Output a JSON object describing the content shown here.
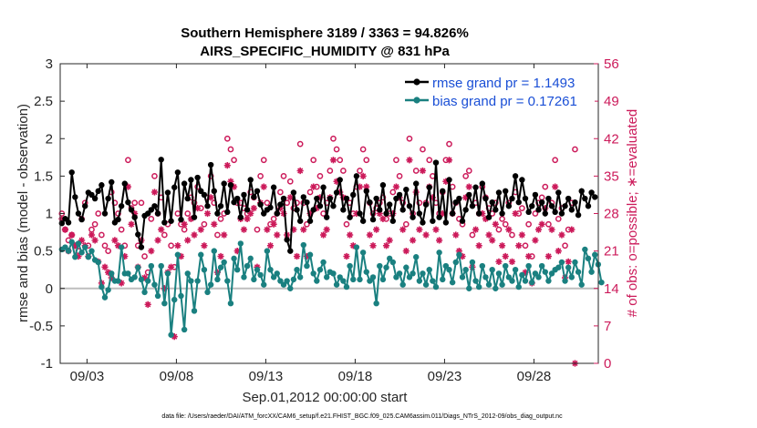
{
  "chart_data": {
    "type": "line",
    "title": "Southern Hemisphere 3189 / 3363 = 94.826%",
    "subtitle": "AIRS_SPECIFIC_HUMIDITY @ 831 hPa",
    "xlabel": "Sep.01,2012 00:00:00 start",
    "ylabel": "rmse and bias (model - observation)",
    "ylabel_right": "# of obs: o=possible; ∗=evaluated",
    "xlim": [
      1.5,
      31.6
    ],
    "ylim": [
      -1,
      3
    ],
    "ylim_right": [
      0,
      56
    ],
    "xticks": [
      3,
      8,
      13,
      18,
      23,
      28
    ],
    "xtick_labels": [
      "09/03",
      "09/08",
      "09/13",
      "09/18",
      "09/23",
      "09/28"
    ],
    "yticks": [
      -1,
      -0.5,
      0,
      0.5,
      1,
      1.5,
      2,
      2.5,
      3
    ],
    "ytick_labels": [
      "-1",
      "-0.5",
      "0",
      "0.5",
      "1",
      "1.5",
      "2",
      "2.5",
      "3"
    ],
    "yticks_right": [
      0,
      7,
      14,
      21,
      28,
      35,
      42,
      49,
      56
    ],
    "ytick_labels_right": [
      "0",
      "7",
      "14",
      "21",
      "28",
      "35",
      "42",
      "49",
      "56"
    ],
    "legend_position": "top-right",
    "series": [
      {
        "name": "rmse grand pr = 1.1493",
        "color": "#000000",
        "values": [
          0.87,
          0.93,
          0.88,
          1.55,
          1.22,
          1.0,
          0.92,
          1.1,
          1.28,
          1.25,
          1.2,
          1.3,
          1.38,
          1.0,
          1.2,
          1.42,
          0.88,
          0.92,
          1.1,
          1.4,
          1.15,
          1.05,
          0.95,
          0.72,
          0.55,
          0.97,
          1.0,
          1.05,
          1.1,
          1.0,
          1.72,
          0.88,
          1.28,
          0.9,
          1.35,
          1.55,
          0.92,
          1.4,
          1.2,
          1.45,
          0.95,
          1.48,
          1.3,
          1.25,
          1.1,
          1.65,
          1.3,
          1.0,
          1.1,
          1.4,
          1.02,
          1.38,
          1.15,
          1.2,
          0.95,
          1.25,
          1.05,
          1.45,
          1.22,
          1.3,
          1.12,
          1.0,
          1.05,
          1.08,
          1.35,
          1.0,
          1.12,
          1.2,
          0.65,
          0.5,
          1.28,
          1.05,
          0.9,
          1.22,
          1.15,
          0.9,
          1.05,
          1.2,
          1.1,
          1.35,
          0.95,
          1.2,
          1.1,
          1.28,
          1.45,
          1.05,
          1.2,
          0.95,
          1.25,
          1.5,
          1.0,
          0.9,
          1.3,
          1.15,
          0.92,
          1.2,
          1.05,
          1.38,
          1.0,
          1.12,
          0.9,
          1.2,
          1.25,
          1.05,
          1.32,
          1.1,
          0.95,
          1.4,
          1.0,
          0.88,
          1.12,
          1.35,
          0.9,
          1.68,
          0.95,
          1.3,
          0.88,
          1.45,
          1.0,
          1.15,
          1.2,
          0.9,
          1.05,
          1.25,
          1.1,
          1.35,
          1.0,
          1.4,
          1.2,
          0.95,
          1.15,
          1.05,
          1.28,
          1.0,
          1.3,
          1.1,
          1.2,
          1.5,
          1.15,
          1.45,
          1.2,
          1.02,
          1.1,
          1.25,
          1.05,
          1.15,
          1.0,
          1.2,
          1.1,
          1.02,
          1.28,
          1.0,
          1.1,
          1.2,
          1.05,
          1.15,
          0.98,
          1.3,
          1.2,
          1.1,
          1.28,
          1.22
        ]
      },
      {
        "name": "bias grand pr = 0.17261",
        "color": "#1a8080",
        "values": [
          0.52,
          0.55,
          0.5,
          0.62,
          0.42,
          0.6,
          0.48,
          0.55,
          0.42,
          0.5,
          0.38,
          0.35,
          0.02,
          -0.12,
          -0.02,
          0.2,
          0.1,
          0.1,
          0.55,
          0.2,
          0.2,
          0.12,
          0.15,
          0.28,
          0.12,
          -0.05,
          0.1,
          0.3,
          0.05,
          -0.1,
          0.3,
          -0.2,
          0.2,
          -0.62,
          -0.15,
          0.45,
          -0.1,
          -0.55,
          0.2,
          0.1,
          -0.3,
          0.1,
          0.45,
          0.25,
          -0.05,
          0.05,
          0.5,
          0.12,
          0.28,
          0.35,
          0.1,
          -0.2,
          0.4,
          0.25,
          0.6,
          0.15,
          0.3,
          0.4,
          0.12,
          0.25,
          0.18,
          0.05,
          0.5,
          0.25,
          0.15,
          0.2,
          0.1,
          0.05,
          0.1,
          0.0,
          0.12,
          0.25,
          0.15,
          0.58,
          0.3,
          0.45,
          0.2,
          0.1,
          0.25,
          0.35,
          0.15,
          0.22,
          0.2,
          0.05,
          0.15,
          0.1,
          0.02,
          0.3,
          0.12,
          0.55,
          0.12,
          0.48,
          0.22,
          0.1,
          0.15,
          -0.2,
          0.3,
          0.12,
          0.28,
          0.4,
          0.35,
          0.15,
          0.2,
          0.05,
          0.28,
          0.15,
          0.2,
          0.42,
          0.1,
          0.2,
          0.05,
          0.25,
          0.1,
          0.02,
          0.48,
          0.12,
          0.3,
          0.25,
          0.08,
          0.35,
          0.45,
          0.15,
          0.25,
          0.0,
          0.35,
          0.1,
          0.02,
          0.3,
          0.15,
          0.05,
          0.25,
          0.0,
          0.2,
          0.05,
          0.3,
          0.15,
          0.1,
          0.25,
          0.02,
          0.18,
          0.1,
          0.3,
          0.08,
          0.2,
          0.15,
          0.3,
          0.22,
          0.1,
          0.2,
          0.25,
          0.28,
          0.35,
          0.1,
          0.28,
          0.15,
          0.35,
          0.22,
          0.05,
          0.52,
          0.4,
          0.22,
          0.45,
          0.32,
          0.08
        ]
      },
      {
        "name": "possible obs",
        "color": "#cc1a5a",
        "values": [
          28,
          25,
          23,
          24,
          22,
          21,
          27,
          30,
          22,
          25,
          26,
          28,
          24,
          22,
          21,
          32,
          30,
          28,
          25,
          22,
          38,
          29,
          30,
          22,
          30,
          20,
          17,
          27,
          35,
          28,
          31,
          24,
          26,
          22,
          18,
          28,
          26,
          25,
          28,
          31,
          30,
          33,
          29,
          26,
          31,
          35,
          30,
          24,
          27,
          28,
          42,
          40,
          38,
          30,
          30,
          29,
          28,
          32,
          31,
          25,
          35,
          38,
          30,
          26,
          27,
          28,
          32,
          35,
          30,
          34,
          29,
          30,
          41,
          30,
          26,
          32,
          38,
          33,
          35,
          28,
          30,
          36,
          42,
          40,
          38,
          36,
          26,
          30,
          28,
          33,
          36,
          40,
          38,
          30,
          28,
          29,
          30,
          31,
          27,
          28,
          32,
          38,
          35,
          30,
          26,
          42,
          28,
          36,
          30,
          40,
          30,
          38,
          35,
          30,
          28,
          32,
          38,
          41,
          33,
          30,
          27,
          26,
          35,
          36,
          24,
          30,
          28,
          33,
          31,
          29,
          28,
          30,
          25,
          27,
          26,
          30,
          24,
          32,
          28,
          29,
          22,
          26,
          20,
          28,
          30,
          31,
          33,
          26,
          30,
          38,
          27,
          29,
          22,
          25,
          30,
          40
        ]
      },
      {
        "name": "evaluated obs",
        "color": "#cc1a5a",
        "values": [
          27,
          25,
          21,
          24,
          22,
          20,
          23,
          22,
          20,
          24,
          23,
          19,
          15,
          18,
          17,
          16,
          23,
          22,
          15,
          20,
          33,
          26,
          28,
          18,
          23,
          16,
          11,
          21,
          32,
          23,
          25,
          14,
          17,
          18,
          5,
          22,
          20,
          26,
          23,
          27,
          24,
          29,
          25,
          22,
          28,
          31,
          26,
          17,
          20,
          24,
          37,
          34,
          33,
          21,
          27,
          25,
          27,
          28,
          29,
          18,
          30,
          33,
          25,
          22,
          26,
          24,
          29,
          28,
          24,
          31,
          25,
          20,
          36,
          25,
          20,
          28,
          33,
          29,
          31,
          24,
          25,
          31,
          38,
          34,
          32,
          31,
          20,
          24,
          22,
          28,
          33,
          35,
          33,
          24,
          22,
          25,
          28,
          27,
          22,
          23,
          28,
          33,
          31,
          25,
          21,
          38,
          23,
          32,
          25,
          36,
          24,
          33,
          31,
          25,
          23,
          28,
          34,
          38,
          28,
          24,
          21,
          20,
          31,
          33,
          18,
          25,
          22,
          28,
          27,
          24,
          23,
          26,
          19,
          22,
          20,
          25,
          19,
          28,
          22,
          24,
          17,
          20,
          15,
          23,
          25,
          26,
          29,
          20,
          25,
          33,
          21,
          24,
          16,
          19,
          25,
          0
        ]
      }
    ]
  },
  "footer": {
    "data_file": "data file: /Users/raeder/DAI/ATM_forcXX/CAM6_setup/f.e21.FHIST_BGC.f09_025.CAM6assim.011/Diags_NTrS_2012-09/obs_diag_output.nc"
  }
}
